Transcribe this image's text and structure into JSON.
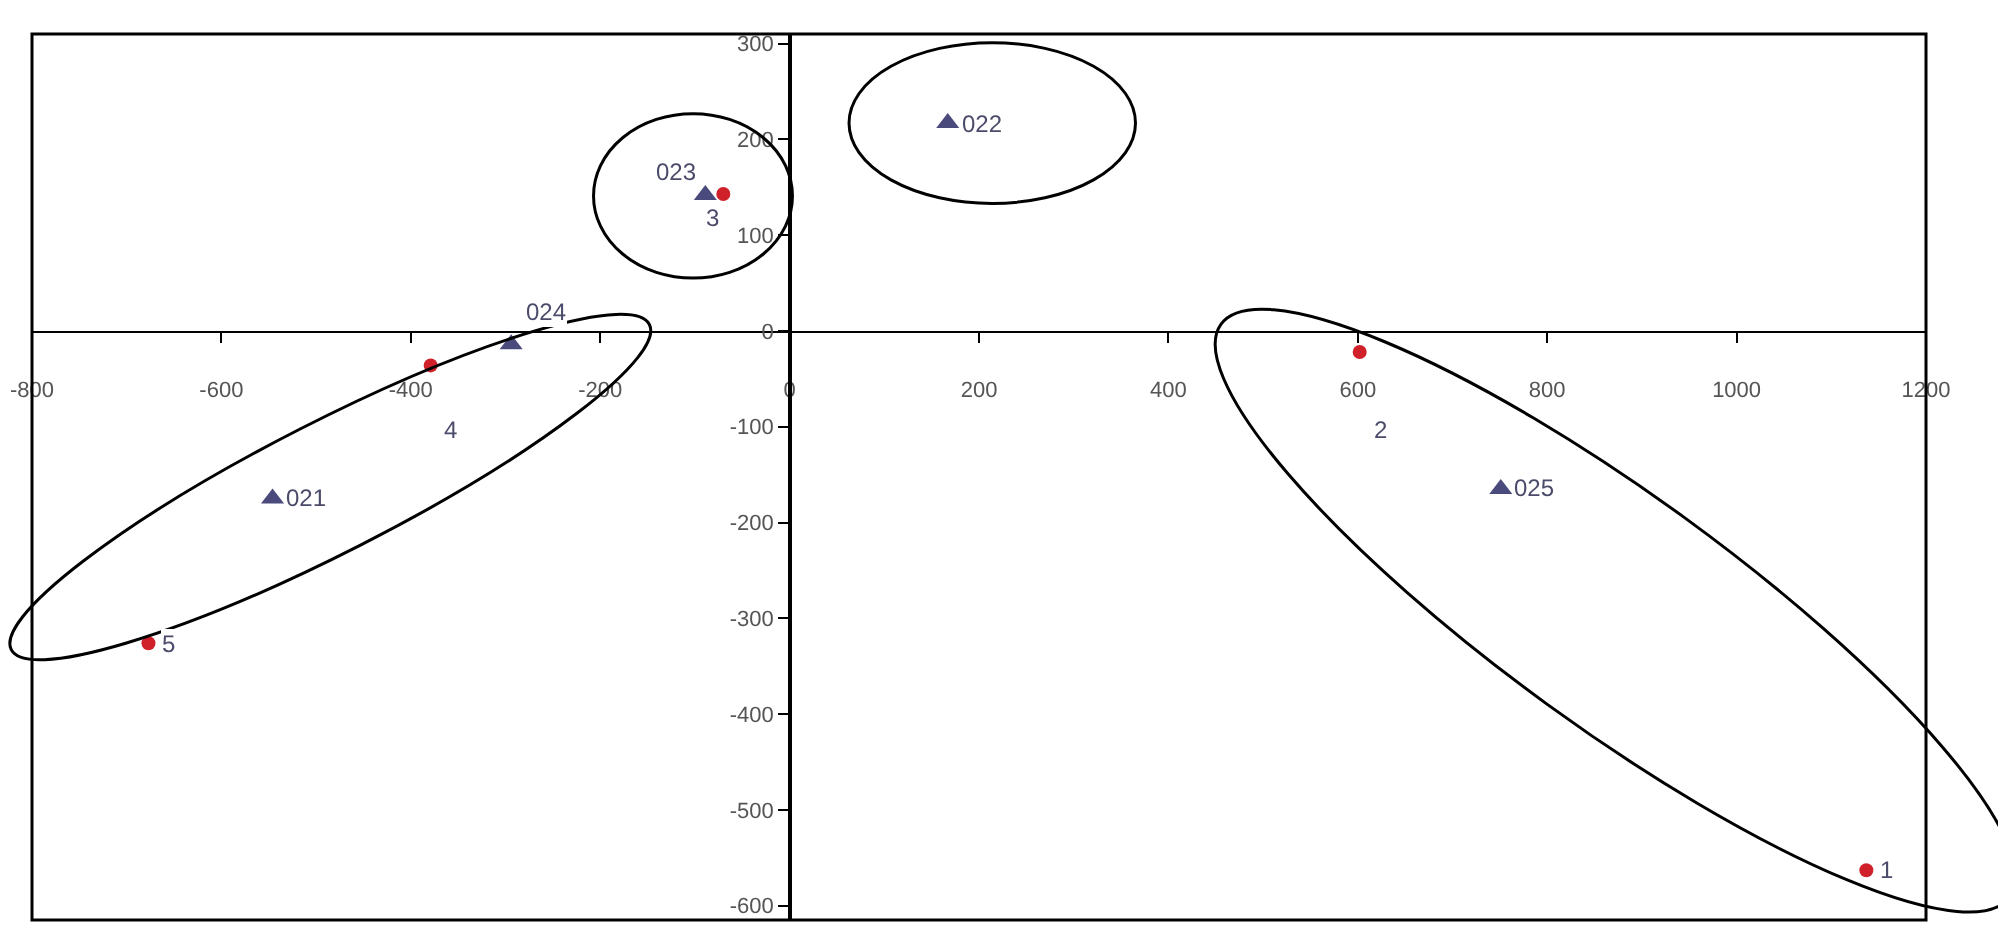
{
  "chart_data": {
    "type": "scatter",
    "series": [
      {
        "color": "#4b4a7c",
        "marker": "triangle",
        "x": [
          -546,
          167,
          -89,
          -294,
          751
        ],
        "values": [
          -175,
          217,
          142,
          -14,
          -165
        ]
      },
      {
        "color": "#d0202a",
        "marker": "circle",
        "x": [
          1137,
          602,
          -70,
          -379,
          -677
        ],
        "values": [
          -563,
          -22,
          143,
          -36,
          -326
        ]
      }
    ],
    "annotations": [
      {
        "text": "021",
        "x": -546,
        "y": -175
      },
      {
        "text": "022",
        "x": 167,
        "y": 217
      },
      {
        "text": "023",
        "x": -89,
        "y": 142
      },
      {
        "text": "024",
        "x": -294,
        "y": -14
      },
      {
        "text": "025",
        "x": 751,
        "y": -165
      },
      {
        "text": "1",
        "x": 1137,
        "y": -563
      },
      {
        "text": "2",
        "x": 602,
        "y": -22
      },
      {
        "text": "3",
        "x": -70,
        "y": 143
      },
      {
        "text": "4",
        "x": -379,
        "y": -36
      },
      {
        "text": "5",
        "x": -677,
        "y": -326
      }
    ],
    "xlim": [
      -800,
      1200
    ],
    "xticks": [
      -800,
      -600,
      -400,
      -200,
      0,
      200,
      400,
      600,
      800,
      1000,
      1200
    ],
    "ylim": [
      -615,
      310
    ],
    "yticks": [
      -600,
      -500,
      -400,
      -300,
      -200,
      -100,
      0,
      100,
      200,
      300
    ]
  }
}
